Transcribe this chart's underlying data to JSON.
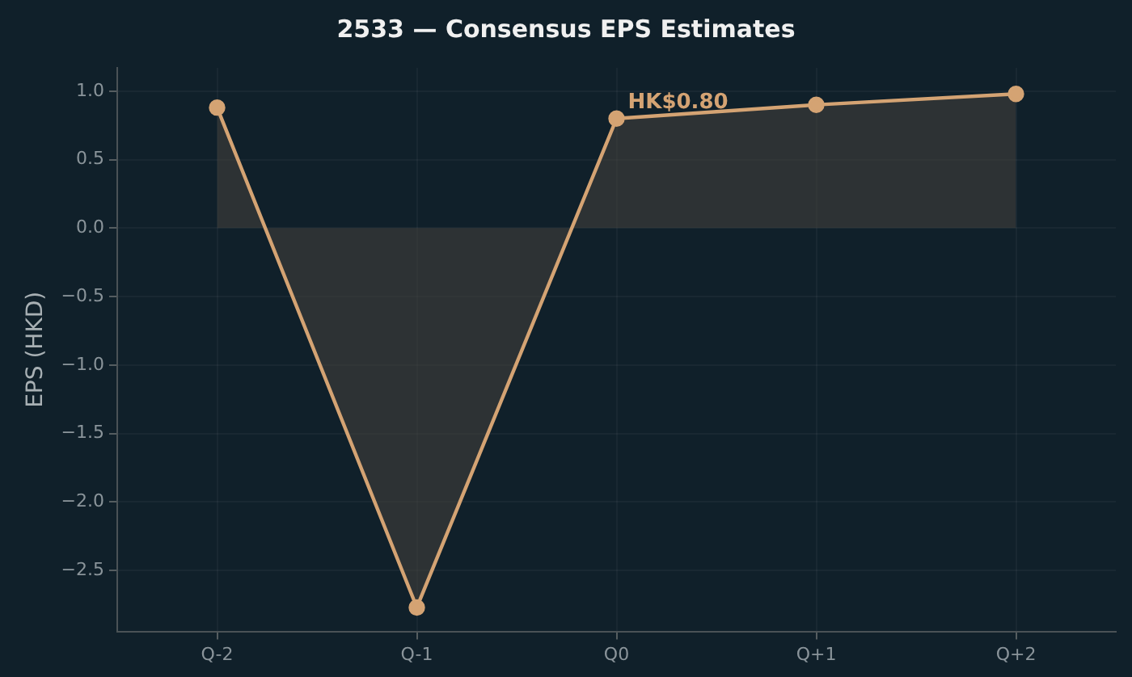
{
  "chart_data": {
    "type": "area",
    "title": "2533 — Consensus EPS Estimates",
    "ylabel": "EPS (HKD)",
    "categories": [
      "Q-2",
      "Q-1",
      "Q0",
      "Q+1",
      "Q+2"
    ],
    "series": [
      {
        "color": "#d4a373",
        "values": [
          0.88,
          -2.77,
          0.8,
          0.9,
          0.98
        ]
      }
    ],
    "ylim": [
      -2.945,
      1.17
    ],
    "yticks": [
      {
        "value": -2.5,
        "label": "−2.5"
      },
      {
        "value": -2.0,
        "label": "−2.0"
      },
      {
        "value": -1.5,
        "label": "−1.5"
      },
      {
        "value": -1.0,
        "label": "−1.0"
      },
      {
        "value": -0.5,
        "label": "−0.5"
      },
      {
        "value": 0,
        "label": "0.0"
      },
      {
        "value": 0.5,
        "label": "0.5"
      },
      {
        "value": 1.0,
        "label": "1.0"
      }
    ],
    "grid": true,
    "legend": false,
    "marker": "circle",
    "line_style": "solid",
    "annotations": [
      {
        "text": "HK$0.80",
        "x": "Q0",
        "y": 0.8
      }
    ]
  }
}
